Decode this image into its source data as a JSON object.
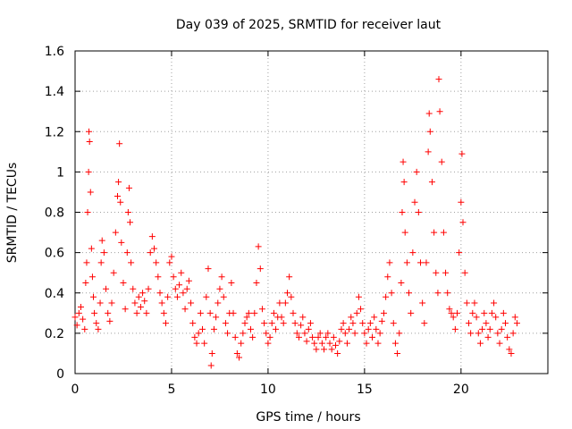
{
  "chart_data": {
    "type": "scatter",
    "title": "Day 039 of 2025, SRMTID for receiver laut",
    "xlabel": "GPS time / hours",
    "ylabel": "SRMTID / TECUs",
    "xlim": [
      0,
      24.5
    ],
    "ylim": [
      0,
      1.6
    ],
    "grid": true,
    "marker": "+",
    "color": "#ff0000",
    "xticks": [
      0,
      5,
      10,
      15,
      20
    ],
    "xtick_labels": [
      "0",
      "5",
      "10",
      "15",
      "20"
    ],
    "yticks": [
      0,
      0.2,
      0.4,
      0.6,
      0.8,
      1.0,
      1.2,
      1.4,
      1.6
    ],
    "ytick_labels": [
      "0",
      "0.2",
      "0.4",
      "0.6",
      "0.8",
      "1",
      "1.2",
      "1.4",
      "1.6"
    ],
    "series": [
      {
        "name": "SRMTID",
        "points": [
          [
            0.0,
            0.28
          ],
          [
            0.1,
            0.24
          ],
          [
            0.2,
            0.3
          ],
          [
            0.3,
            0.33
          ],
          [
            0.4,
            0.27
          ],
          [
            0.5,
            0.22
          ],
          [
            0.55,
            0.45
          ],
          [
            0.6,
            0.55
          ],
          [
            0.65,
            0.8
          ],
          [
            0.7,
            1.0
          ],
          [
            0.72,
            1.2
          ],
          [
            0.75,
            1.15
          ],
          [
            0.8,
            0.9
          ],
          [
            0.85,
            0.62
          ],
          [
            0.9,
            0.48
          ],
          [
            0.95,
            0.38
          ],
          [
            1.0,
            0.3
          ],
          [
            1.1,
            0.25
          ],
          [
            1.2,
            0.22
          ],
          [
            1.3,
            0.35
          ],
          [
            1.35,
            0.55
          ],
          [
            1.4,
            0.66
          ],
          [
            1.5,
            0.6
          ],
          [
            1.6,
            0.42
          ],
          [
            1.7,
            0.3
          ],
          [
            1.8,
            0.26
          ],
          [
            1.9,
            0.35
          ],
          [
            2.0,
            0.5
          ],
          [
            2.1,
            0.7
          ],
          [
            2.2,
            0.88
          ],
          [
            2.25,
            0.95
          ],
          [
            2.3,
            1.14
          ],
          [
            2.35,
            0.85
          ],
          [
            2.4,
            0.65
          ],
          [
            2.5,
            0.45
          ],
          [
            2.6,
            0.32
          ],
          [
            2.7,
            0.6
          ],
          [
            2.75,
            0.8
          ],
          [
            2.8,
            0.92
          ],
          [
            2.85,
            0.75
          ],
          [
            2.9,
            0.55
          ],
          [
            3.0,
            0.42
          ],
          [
            3.1,
            0.35
          ],
          [
            3.2,
            0.3
          ],
          [
            3.3,
            0.38
          ],
          [
            3.4,
            0.33
          ],
          [
            3.5,
            0.4
          ],
          [
            3.6,
            0.36
          ],
          [
            3.7,
            0.3
          ],
          [
            3.8,
            0.42
          ],
          [
            3.9,
            0.6
          ],
          [
            4.0,
            0.68
          ],
          [
            4.1,
            0.62
          ],
          [
            4.2,
            0.55
          ],
          [
            4.3,
            0.48
          ],
          [
            4.4,
            0.4
          ],
          [
            4.5,
            0.35
          ],
          [
            4.6,
            0.3
          ],
          [
            4.7,
            0.25
          ],
          [
            4.8,
            0.38
          ],
          [
            4.9,
            0.55
          ],
          [
            5.0,
            0.58
          ],
          [
            5.1,
            0.48
          ],
          [
            5.2,
            0.42
          ],
          [
            5.3,
            0.38
          ],
          [
            5.4,
            0.44
          ],
          [
            5.5,
            0.5
          ],
          [
            5.6,
            0.4
          ],
          [
            5.7,
            0.32
          ],
          [
            5.8,
            0.42
          ],
          [
            5.9,
            0.46
          ],
          [
            6.0,
            0.35
          ],
          [
            6.1,
            0.25
          ],
          [
            6.2,
            0.18
          ],
          [
            6.3,
            0.15
          ],
          [
            6.4,
            0.2
          ],
          [
            6.5,
            0.3
          ],
          [
            6.6,
            0.22
          ],
          [
            6.7,
            0.15
          ],
          [
            6.8,
            0.38
          ],
          [
            6.9,
            0.52
          ],
          [
            7.0,
            0.3
          ],
          [
            7.05,
            0.04
          ],
          [
            7.1,
            0.1
          ],
          [
            7.2,
            0.22
          ],
          [
            7.3,
            0.28
          ],
          [
            7.4,
            0.35
          ],
          [
            7.5,
            0.42
          ],
          [
            7.6,
            0.48
          ],
          [
            7.7,
            0.38
          ],
          [
            7.8,
            0.25
          ],
          [
            7.9,
            0.2
          ],
          [
            8.0,
            0.3
          ],
          [
            8.1,
            0.45
          ],
          [
            8.2,
            0.3
          ],
          [
            8.3,
            0.18
          ],
          [
            8.4,
            0.1
          ],
          [
            8.5,
            0.08
          ],
          [
            8.6,
            0.15
          ],
          [
            8.7,
            0.2
          ],
          [
            8.8,
            0.25
          ],
          [
            8.9,
            0.28
          ],
          [
            9.0,
            0.3
          ],
          [
            9.1,
            0.22
          ],
          [
            9.2,
            0.18
          ],
          [
            9.3,
            0.3
          ],
          [
            9.4,
            0.45
          ],
          [
            9.5,
            0.63
          ],
          [
            9.6,
            0.52
          ],
          [
            9.7,
            0.32
          ],
          [
            9.8,
            0.25
          ],
          [
            9.9,
            0.2
          ],
          [
            10.0,
            0.15
          ],
          [
            10.1,
            0.18
          ],
          [
            10.2,
            0.25
          ],
          [
            10.3,
            0.3
          ],
          [
            10.4,
            0.22
          ],
          [
            10.5,
            0.28
          ],
          [
            10.6,
            0.35
          ],
          [
            10.7,
            0.28
          ],
          [
            10.8,
            0.25
          ],
          [
            10.9,
            0.35
          ],
          [
            11.0,
            0.4
          ],
          [
            11.1,
            0.48
          ],
          [
            11.2,
            0.38
          ],
          [
            11.3,
            0.3
          ],
          [
            11.4,
            0.25
          ],
          [
            11.5,
            0.2
          ],
          [
            11.6,
            0.18
          ],
          [
            11.7,
            0.24
          ],
          [
            11.8,
            0.28
          ],
          [
            11.9,
            0.2
          ],
          [
            12.0,
            0.16
          ],
          [
            12.1,
            0.22
          ],
          [
            12.2,
            0.25
          ],
          [
            12.3,
            0.18
          ],
          [
            12.4,
            0.15
          ],
          [
            12.5,
            0.12
          ],
          [
            12.6,
            0.18
          ],
          [
            12.7,
            0.2
          ],
          [
            12.8,
            0.15
          ],
          [
            12.9,
            0.12
          ],
          [
            13.0,
            0.18
          ],
          [
            13.1,
            0.2
          ],
          [
            13.2,
            0.15
          ],
          [
            13.3,
            0.12
          ],
          [
            13.4,
            0.18
          ],
          [
            13.5,
            0.14
          ],
          [
            13.6,
            0.1
          ],
          [
            13.7,
            0.16
          ],
          [
            13.8,
            0.22
          ],
          [
            13.9,
            0.25
          ],
          [
            14.0,
            0.2
          ],
          [
            14.1,
            0.15
          ],
          [
            14.2,
            0.22
          ],
          [
            14.3,
            0.28
          ],
          [
            14.4,
            0.25
          ],
          [
            14.5,
            0.2
          ],
          [
            14.6,
            0.3
          ],
          [
            14.7,
            0.38
          ],
          [
            14.8,
            0.32
          ],
          [
            14.9,
            0.25
          ],
          [
            15.0,
            0.2
          ],
          [
            15.1,
            0.15
          ],
          [
            15.2,
            0.22
          ],
          [
            15.3,
            0.25
          ],
          [
            15.4,
            0.18
          ],
          [
            15.5,
            0.28
          ],
          [
            15.6,
            0.22
          ],
          [
            15.7,
            0.15
          ],
          [
            15.8,
            0.2
          ],
          [
            15.9,
            0.26
          ],
          [
            16.0,
            0.3
          ],
          [
            16.1,
            0.38
          ],
          [
            16.2,
            0.48
          ],
          [
            16.3,
            0.55
          ],
          [
            16.4,
            0.4
          ],
          [
            16.5,
            0.25
          ],
          [
            16.6,
            0.15
          ],
          [
            16.7,
            0.1
          ],
          [
            16.8,
            0.2
          ],
          [
            16.9,
            0.45
          ],
          [
            16.95,
            0.8
          ],
          [
            17.0,
            1.05
          ],
          [
            17.05,
            0.95
          ],
          [
            17.1,
            0.7
          ],
          [
            17.2,
            0.55
          ],
          [
            17.3,
            0.4
          ],
          [
            17.4,
            0.3
          ],
          [
            17.5,
            0.6
          ],
          [
            17.6,
            0.85
          ],
          [
            17.7,
            1.0
          ],
          [
            17.8,
            0.8
          ],
          [
            17.9,
            0.55
          ],
          [
            18.0,
            0.35
          ],
          [
            18.1,
            0.25
          ],
          [
            18.2,
            0.55
          ],
          [
            18.3,
            1.1
          ],
          [
            18.35,
            1.29
          ],
          [
            18.4,
            1.2
          ],
          [
            18.5,
            0.95
          ],
          [
            18.6,
            0.7
          ],
          [
            18.7,
            0.5
          ],
          [
            18.8,
            0.4
          ],
          [
            18.85,
            1.46
          ],
          [
            18.9,
            1.3
          ],
          [
            19.0,
            1.05
          ],
          [
            19.1,
            0.7
          ],
          [
            19.2,
            0.5
          ],
          [
            19.3,
            0.4
          ],
          [
            19.4,
            0.32
          ],
          [
            19.5,
            0.3
          ],
          [
            19.6,
            0.28
          ],
          [
            19.7,
            0.22
          ],
          [
            19.8,
            0.3
          ],
          [
            19.9,
            0.6
          ],
          [
            20.0,
            0.85
          ],
          [
            20.05,
            1.09
          ],
          [
            20.1,
            0.75
          ],
          [
            20.2,
            0.5
          ],
          [
            20.3,
            0.35
          ],
          [
            20.4,
            0.25
          ],
          [
            20.5,
            0.2
          ],
          [
            20.6,
            0.3
          ],
          [
            20.7,
            0.35
          ],
          [
            20.8,
            0.28
          ],
          [
            20.9,
            0.2
          ],
          [
            21.0,
            0.15
          ],
          [
            21.1,
            0.22
          ],
          [
            21.2,
            0.3
          ],
          [
            21.3,
            0.25
          ],
          [
            21.4,
            0.18
          ],
          [
            21.5,
            0.22
          ],
          [
            21.6,
            0.3
          ],
          [
            21.7,
            0.35
          ],
          [
            21.8,
            0.28
          ],
          [
            21.9,
            0.2
          ],
          [
            22.0,
            0.15
          ],
          [
            22.1,
            0.22
          ],
          [
            22.2,
            0.3
          ],
          [
            22.3,
            0.25
          ],
          [
            22.4,
            0.18
          ],
          [
            22.5,
            0.12
          ],
          [
            22.6,
            0.1
          ],
          [
            22.7,
            0.2
          ],
          [
            22.8,
            0.28
          ],
          [
            22.9,
            0.25
          ]
        ]
      }
    ]
  }
}
